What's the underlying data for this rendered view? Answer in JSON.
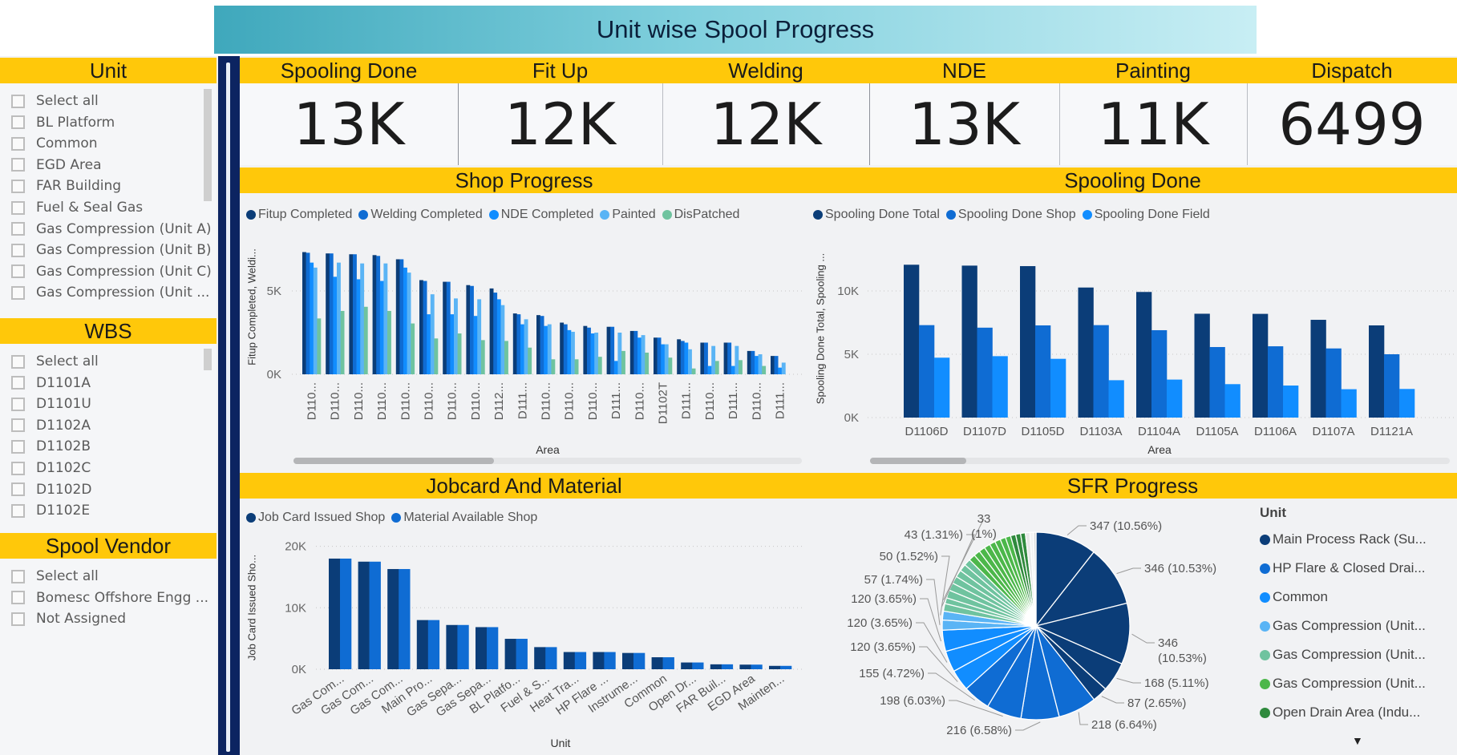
{
  "title": "Unit wise Spool Progress",
  "slicers": [
    {
      "title": "Unit",
      "items": [
        "Select all",
        "BL Platform",
        "Common",
        "EGD Area",
        "FAR Building",
        "Fuel & Seal Gas",
        "Gas Compression (Unit A)",
        "Gas Compression (Unit B)",
        "Gas Compression (Unit C)",
        "Gas Compression (Unit ..."
      ]
    },
    {
      "title": "WBS",
      "items": [
        "Select all",
        "D1101A",
        "D1101U",
        "D1102A",
        "D1102B",
        "D1102C",
        "D1102D",
        "D1102E"
      ]
    },
    {
      "title": "Spool Vendor",
      "items": [
        "Select all",
        "Bomesc Offshore Engg ...",
        "Not Assigned"
      ]
    }
  ],
  "kpis": [
    {
      "label": "Spooling Done",
      "value": "13K"
    },
    {
      "label": "Fit Up",
      "value": "12K"
    },
    {
      "label": "Welding",
      "value": "12K"
    },
    {
      "label": "NDE",
      "value": "13K"
    },
    {
      "label": "Painting",
      "value": "11K"
    },
    {
      "label": "Dispatch",
      "value": "6499"
    }
  ],
  "panels": {
    "shop": "Shop Progress",
    "spooling": "Spooling Done",
    "jobcard": "Jobcard And Material",
    "sfr": "SFR Progress"
  },
  "colors": {
    "header_yellow": "#FFC80A",
    "navy": "#0B3D78",
    "blue": "#0F6CD3",
    "bright_blue": "#118DFF",
    "light_blue": "#5AB4F5",
    "teal": "#6FC39F",
    "green": "#4CB74A",
    "dark_green": "#2F8A3D"
  },
  "chart_data": [
    {
      "type": "bar",
      "title": "Shop Progress",
      "xlabel": "Area",
      "ylabel": "Fitup Completed, Weldi...",
      "ylim": [
        0,
        8000
      ],
      "yticks": [
        0,
        5000
      ],
      "ytick_labels": [
        "0K",
        "5K"
      ],
      "grid": true,
      "legend": "top-left",
      "categories": [
        "D110...",
        "D110...",
        "D110...",
        "D110...",
        "D110...",
        "D110...",
        "D110...",
        "D110...",
        "D112...",
        "D111...",
        "D110...",
        "D110...",
        "D110...",
        "D111...",
        "D110...",
        "D1102T",
        "D111...",
        "D110...",
        "D111...",
        "D110...",
        "D111..."
      ],
      "series": [
        {
          "name": "Fitup Completed",
          "color": "#0B3D78",
          "values": [
            7330,
            7250,
            7200,
            7150,
            6900,
            5650,
            5550,
            5350,
            5150,
            3650,
            3550,
            3100,
            2900,
            2850,
            2600,
            2200,
            2100,
            1900,
            1900,
            1400,
            1100
          ]
        },
        {
          "name": "Welding Completed",
          "color": "#0F6CD3",
          "values": [
            7290,
            7250,
            7200,
            7100,
            6900,
            5600,
            5550,
            5300,
            4900,
            3600,
            3500,
            3000,
            2800,
            2850,
            2600,
            2200,
            2000,
            1900,
            1900,
            1400,
            1100
          ]
        },
        {
          "name": "NDE Completed",
          "color": "#118DFF",
          "values": [
            6700,
            5850,
            5700,
            5600,
            6400,
            3600,
            3600,
            3500,
            4500,
            3000,
            2900,
            2650,
            2450,
            800,
            2200,
            1800,
            1900,
            500,
            500,
            1100,
            400
          ]
        },
        {
          "name": "Painted",
          "color": "#5AB4F5",
          "values": [
            6400,
            6700,
            6650,
            6650,
            6100,
            4800,
            4550,
            4500,
            4150,
            3300,
            3000,
            2550,
            2500,
            2500,
            2350,
            1800,
            1500,
            1700,
            1700,
            1200,
            700
          ]
        },
        {
          "name": "DisPatched",
          "color": "#6FC39F",
          "values": [
            3350,
            3800,
            4050,
            3800,
            3050,
            2150,
            2450,
            2050,
            2000,
            1600,
            900,
            900,
            1050,
            1400,
            1300,
            1000,
            350,
            800,
            850,
            500,
            0
          ]
        }
      ]
    },
    {
      "type": "bar",
      "title": "Spooling Done",
      "xlabel": "Area",
      "ylabel": "Spooling Done Total, Spooling ...",
      "ylim": [
        0,
        13000
      ],
      "yticks": [
        0,
        5000,
        10000
      ],
      "ytick_labels": [
        "0K",
        "5K",
        "10K"
      ],
      "grid": true,
      "legend": "top-left",
      "categories": [
        "D1106D",
        "D1107D",
        "D1105D",
        "D1103A",
        "D1104A",
        "D1105A",
        "D1106A",
        "D1107A",
        "D1121A"
      ],
      "series": [
        {
          "name": "Spooling Done Total",
          "color": "#0B3D78",
          "values": [
            12070,
            12000,
            11960,
            10270,
            9920,
            8200,
            8190,
            7720,
            7280
          ]
        },
        {
          "name": "Spooling Done Shop",
          "color": "#0F6CD3",
          "values": [
            7300,
            7100,
            7280,
            7300,
            6900,
            5570,
            5630,
            5460,
            5000
          ]
        },
        {
          "name": "Spooling Done Field",
          "color": "#118DFF",
          "values": [
            4730,
            4850,
            4640,
            2950,
            3000,
            2640,
            2530,
            2240,
            2260
          ]
        }
      ]
    },
    {
      "type": "bar",
      "title": "Jobcard And Material",
      "xlabel": "Unit",
      "ylabel": "Job Card Issued Sho...",
      "ylim": [
        0,
        22000
      ],
      "yticks": [
        0,
        10000,
        20000
      ],
      "ytick_labels": [
        "0K",
        "10K",
        "20K"
      ],
      "grid": true,
      "legend": "top-left",
      "categories": [
        "Gas Com...",
        "Gas Com...",
        "Gas Com...",
        "Main Pro...",
        "Gas Sepa...",
        "Gas Sepa...",
        "BL Platfo...",
        "Fuel & S...",
        "Heat Tra...",
        "HP Flare ...",
        "Instrume...",
        "Common",
        "Open Dr...",
        "FAR Buil...",
        "EGD Area",
        "Mainten..."
      ],
      "series": [
        {
          "name": "Job Card Issued Shop",
          "color": "#0B3D78",
          "values": [
            18000,
            17500,
            16300,
            8000,
            7200,
            6850,
            4950,
            3600,
            2800,
            2800,
            2650,
            1950,
            1100,
            800,
            750,
            550
          ]
        },
        {
          "name": "Material Available Shop",
          "color": "#0F6CD3",
          "values": [
            18000,
            17500,
            16300,
            8000,
            7200,
            6850,
            4950,
            3600,
            2800,
            2800,
            2650,
            1950,
            1100,
            800,
            750,
            550
          ]
        }
      ]
    },
    {
      "type": "pie",
      "title": "SFR Progress",
      "legend_title": "Unit",
      "legend": "right",
      "legend_items": [
        {
          "name": "Main Process Rack (Su...",
          "color": "#0B3D78"
        },
        {
          "name": "HP Flare & Closed Drai...",
          "color": "#0F6CD3"
        },
        {
          "name": "Common",
          "color": "#118DFF"
        },
        {
          "name": "Gas Compression (Unit...",
          "color": "#5AB4F5"
        },
        {
          "name": "Gas Compression (Unit...",
          "color": "#6FC39F"
        },
        {
          "name": "Gas Compression (Unit...",
          "color": "#4CB74A"
        },
        {
          "name": "Open Drain Area (Indu...",
          "color": "#2F8A3D"
        }
      ],
      "slices": [
        {
          "value": 347,
          "label": "347 (10.56%)",
          "color": "#0B3D78"
        },
        {
          "value": 346,
          "label": "346 (10.53%)",
          "color": "#0B3D78"
        },
        {
          "value": 346,
          "label": "346 (10.53%)",
          "color": "#0B3D78"
        },
        {
          "value": 168,
          "label": "168 (5.11%)",
          "color": "#0B3D78"
        },
        {
          "value": 87,
          "label": "87 (2.65%)",
          "color": "#0B3D78"
        },
        {
          "value": 218,
          "label": "218 (6.64%)",
          "color": "#0F6CD3"
        },
        {
          "value": 216,
          "label": "216 (6.58%)",
          "color": "#0F6CD3"
        },
        {
          "value": 198,
          "label": "198 (6.03%)",
          "color": "#0F6CD3"
        },
        {
          "value": 155,
          "label": "155 (4.72%)",
          "color": "#0F6CD3"
        },
        {
          "value": 120,
          "label": "120 (3.65%)",
          "color": "#118DFF"
        },
        {
          "value": 120,
          "label": "120 (3.65%)",
          "color": "#118DFF"
        },
        {
          "value": 120,
          "label": "120 (3.65%)",
          "color": "#118DFF"
        },
        {
          "value": 57,
          "label": "57 (1.74%)",
          "color": "#5AB4F5"
        },
        {
          "value": 50,
          "label": "50 (1.52%)",
          "color": "#5AB4F5"
        },
        {
          "value": 43,
          "label": "43 (1.31%)",
          "color": "#6FC39F"
        },
        {
          "value": 33,
          "label": "33 (1%)",
          "color": "#6FC39F"
        }
      ],
      "unlabeled_values": [
        45,
        44,
        42,
        41,
        40,
        38,
        37,
        36,
        35,
        34,
        33,
        32,
        31,
        30,
        29,
        28,
        27,
        26,
        20,
        14
      ]
    }
  ]
}
